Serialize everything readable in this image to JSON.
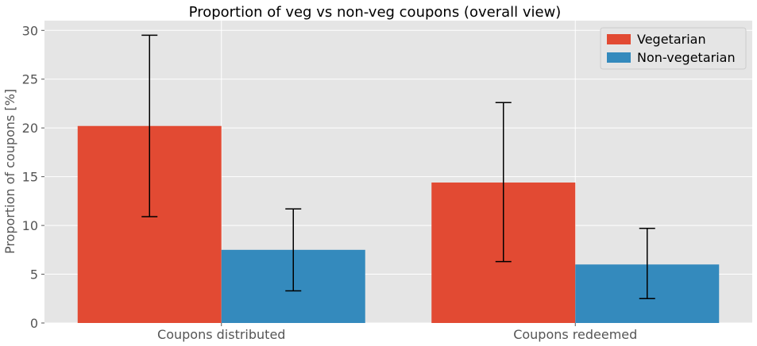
{
  "chart_data": {
    "type": "bar",
    "title": "Proportion of veg vs non-veg coupons (overall view)",
    "xlabel": "",
    "ylabel": "Proportion of coupons [%]",
    "categories": [
      "Coupons distributed",
      "Coupons redeemed"
    ],
    "ylim": [
      0,
      31
    ],
    "yticks": [
      0,
      5,
      10,
      15,
      20,
      25,
      30
    ],
    "grid": true,
    "legend_position": "top-right",
    "series": [
      {
        "name": "Vegetarian",
        "color": "#E24A33",
        "values": [
          20.2,
          14.4
        ],
        "error_low": [
          10.9,
          6.3
        ],
        "error_high": [
          29.5,
          22.6
        ]
      },
      {
        "name": "Non-vegetarian",
        "color": "#348ABD",
        "values": [
          7.5,
          6.0
        ],
        "error_low": [
          3.3,
          2.5
        ],
        "error_high": [
          11.7,
          9.7
        ]
      }
    ]
  }
}
